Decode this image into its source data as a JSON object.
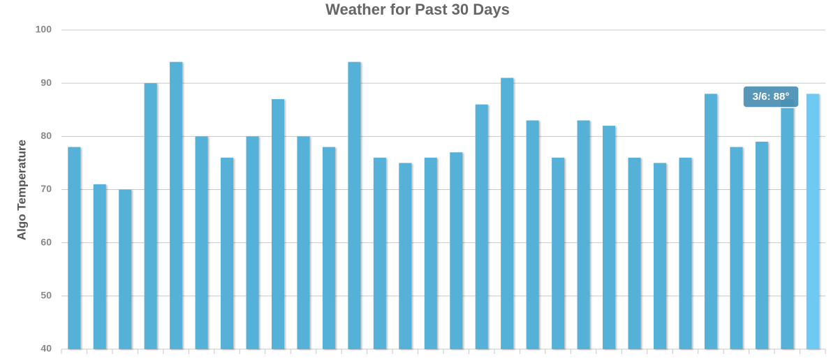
{
  "chart_data": {
    "type": "bar",
    "title": "Weather for Past 30 Days",
    "y_label": "Algo Temperature",
    "categories": [
      null,
      null,
      null,
      null,
      null,
      null,
      null,
      null,
      null,
      null,
      null,
      null,
      null,
      null,
      null,
      null,
      null,
      null,
      null,
      null,
      null,
      null,
      null,
      null,
      null,
      null,
      null,
      null,
      null,
      null
    ],
    "values": [
      78,
      71,
      70,
      90,
      94,
      80,
      76,
      80,
      87,
      80,
      78,
      94,
      76,
      75,
      76,
      77,
      86,
      91,
      83,
      76,
      83,
      82,
      76,
      75,
      76,
      88,
      78,
      79,
      87,
      88
    ],
    "colors": [
      "#56b1d9",
      "#56b1d9",
      "#56b1d9",
      "#56b1d9",
      "#56b1d9",
      "#56b1d9",
      "#56b1d9",
      "#56b1d9",
      "#56b1d9",
      "#56b1d9",
      "#56b1d9",
      "#56b1d9",
      "#56b1d9",
      "#56b1d9",
      "#56b1d9",
      "#56b1d9",
      "#56b1d9",
      "#56b1d9",
      "#56b1d9",
      "#56b1d9",
      "#56b1d9",
      "#56b1d9",
      "#56b1d9",
      "#56b1d9",
      "#56b1d9",
      "#56b1d9",
      "#56b1d9",
      "#56b1d9",
      "#56b1d9",
      "#6fcaf3"
    ],
    "ylim": [
      40,
      100
    ],
    "yticks": [
      40,
      50,
      60,
      70,
      80,
      90,
      100
    ],
    "grid": true,
    "tooltip": "3/6: 88°"
  }
}
